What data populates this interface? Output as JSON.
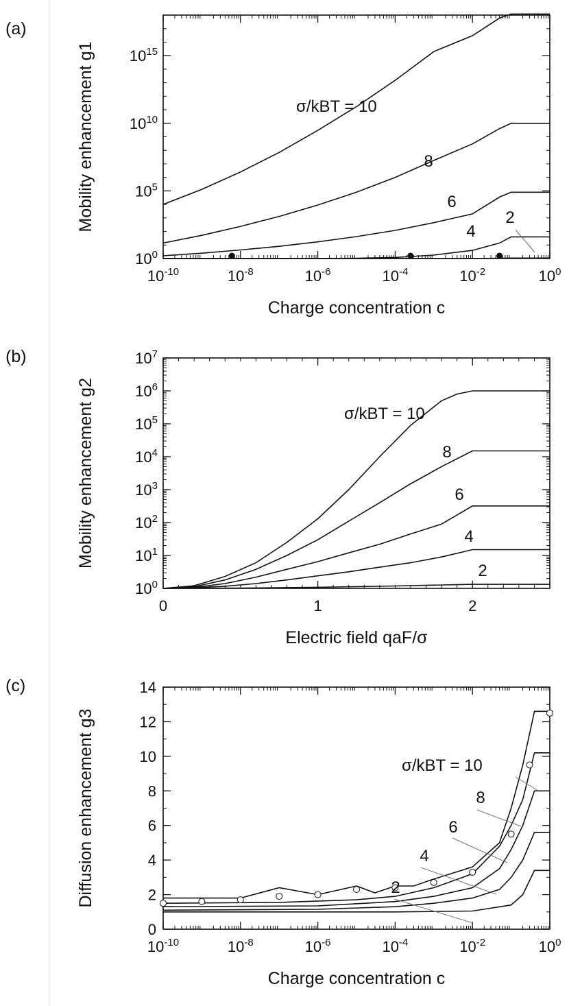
{
  "chart_data": [
    {
      "panel": "(a)",
      "type": "line",
      "xlabel": "Charge concentration c",
      "ylabel": "Mobility enhancement g1",
      "x_scale": "log",
      "y_scale": "log",
      "xlim": [
        1e-10,
        1
      ],
      "ylim": [
        1,
        1e+18
      ],
      "x_ticks": [
        1e-10,
        1e-08,
        1e-06,
        0.0001,
        0.01,
        1
      ],
      "x_tick_labels": [
        [
          "10",
          "-10"
        ],
        [
          "10",
          "-8"
        ],
        [
          "10",
          "-6"
        ],
        [
          "10",
          "-4"
        ],
        [
          "10",
          "-2"
        ],
        [
          "10",
          "0"
        ]
      ],
      "y_ticks": [
        1,
        100000.0,
        10000000000.0,
        1000000000000000.0
      ],
      "y_tick_labels": [
        [
          "10",
          "0"
        ],
        [
          "10",
          "5"
        ],
        [
          "10",
          "10"
        ],
        [
          "10",
          "15"
        ]
      ],
      "curve_labels": {
        "sigma10": "σ/kBT = 10",
        "s8": "8",
        "s6": "6",
        "s4": "4",
        "s2": "2"
      },
      "series": [
        {
          "name": "10",
          "x": [
            1e-10,
            1e-09,
            1e-08,
            1e-07,
            1e-06,
            1e-05,
            0.0001,
            0.001,
            0.01,
            0.05,
            0.1,
            1
          ],
          "y": [
            10000.0,
            130000.0,
            2500000.0,
            70000000.0,
            3000000000.0,
            170000000000.0,
            15000000000000.0,
            2000000000000000.0,
            3e+16,
            6e+17,
            1.2e+18,
            1.2e+18
          ]
        },
        {
          "name": "8",
          "x": [
            1e-10,
            1e-09,
            1e-08,
            1e-07,
            1e-06,
            1e-05,
            0.0001,
            0.001,
            0.01,
            0.05,
            0.1,
            1
          ],
          "y": [
            14,
            52,
            240,
            1300,
            9000,
            80000.0,
            1000000.0,
            18000000.0,
            300000000.0,
            4000000000.0,
            10000000000.0,
            10000000000.0
          ]
        },
        {
          "name": "6",
          "x": [
            1e-10,
            1e-09,
            1e-08,
            1e-07,
            1e-06,
            1e-05,
            0.0001,
            0.001,
            0.01,
            0.05,
            0.1,
            1
          ],
          "y": [
            1.6,
            2.5,
            4.3,
            8,
            17,
            42,
            120,
            450,
            2000,
            35000.0,
            80000.0,
            80000.0
          ]
        },
        {
          "name": "4",
          "x": [
            1e-10,
            1e-06,
            1e-05,
            0.0001,
            0.001,
            0.01,
            0.05,
            0.1,
            1
          ],
          "y": [
            1,
            1.02,
            1.05,
            1.2,
            1.8,
            4,
            14,
            40,
            40
          ]
        },
        {
          "name": "2",
          "x": [
            1e-10,
            0.0001,
            0.01,
            0.05,
            0.1,
            1
          ],
          "y": [
            1,
            1,
            1.01,
            1.05,
            1.08,
            1.08
          ]
        }
      ],
      "points": {
        "x": [
          6e-09,
          0.00025,
          0.05
        ],
        "y": [
          1.6,
          1.6,
          1.6
        ]
      }
    },
    {
      "panel": "(b)",
      "type": "line",
      "xlabel": "Electric field qaF/σ",
      "ylabel": "Mobility enhancement g2",
      "x_scale": "linear",
      "y_scale": "log",
      "xlim": [
        0,
        2.5
      ],
      "ylim": [
        1,
        10000000.0
      ],
      "x_ticks": [
        0,
        1,
        2
      ],
      "x_tick_labels": [
        "0",
        "1",
        "2"
      ],
      "y_ticks": [
        1,
        10,
        100,
        1000,
        10000.0,
        100000.0,
        1000000.0,
        10000000.0
      ],
      "y_tick_labels": [
        [
          "10",
          "0"
        ],
        [
          "10",
          "1"
        ],
        [
          "10",
          "2"
        ],
        [
          "10",
          "3"
        ],
        [
          "10",
          "4"
        ],
        [
          "10",
          "5"
        ],
        [
          "10",
          "6"
        ],
        [
          "10",
          "7"
        ]
      ],
      "curve_labels": {
        "sigma10": "σ/kBT = 10",
        "s8": "8",
        "s6": "6",
        "s4": "4",
        "s2": "2"
      },
      "series": [
        {
          "name": "10",
          "x": [
            0,
            0.2,
            0.4,
            0.6,
            0.8,
            1,
            1.2,
            1.4,
            1.6,
            1.8,
            1.9,
            2,
            2.5
          ],
          "y": [
            1,
            1.2,
            2.3,
            6,
            25,
            130,
            1000,
            10000.0,
            90000.0,
            500000.0,
            800000.0,
            1000000.0,
            1000000.0
          ]
        },
        {
          "name": "8",
          "x": [
            0,
            0.2,
            0.4,
            0.6,
            0.8,
            1,
            1.2,
            1.4,
            1.6,
            1.8,
            2,
            2.5
          ],
          "y": [
            1,
            1.12,
            1.8,
            3.8,
            10,
            30,
            110,
            400,
            1500,
            5000,
            15000.0,
            15000.0
          ]
        },
        {
          "name": "6",
          "x": [
            0,
            0.2,
            0.4,
            0.6,
            0.8,
            1,
            1.2,
            1.4,
            1.6,
            1.8,
            2,
            2.5
          ],
          "y": [
            1,
            1.07,
            1.4,
            2.2,
            3.8,
            6.5,
            12,
            22,
            45,
            90,
            320,
            320
          ]
        },
        {
          "name": "4",
          "x": [
            0,
            0.2,
            0.4,
            0.6,
            0.8,
            1,
            1.2,
            1.4,
            1.6,
            1.8,
            2,
            2.5
          ],
          "y": [
            1,
            1.04,
            1.16,
            1.4,
            1.8,
            2.4,
            3.2,
            4.4,
            6,
            9,
            15,
            15
          ]
        },
        {
          "name": "2",
          "x": [
            0,
            0.5,
            1,
            1.5,
            2,
            2.5
          ],
          "y": [
            1,
            1.02,
            1.08,
            1.18,
            1.33,
            1.33
          ]
        }
      ]
    },
    {
      "panel": "(c)",
      "type": "line",
      "xlabel": "Charge concentration c",
      "ylabel": "Diffusion enhancement g3",
      "x_scale": "log",
      "y_scale": "linear",
      "xlim": [
        1e-10,
        1
      ],
      "ylim": [
        0,
        14
      ],
      "x_ticks": [
        1e-10,
        1e-08,
        1e-06,
        0.0001,
        0.01,
        1
      ],
      "x_tick_labels": [
        [
          "10",
          "-10"
        ],
        [
          "10",
          "-8"
        ],
        [
          "10",
          "-6"
        ],
        [
          "10",
          "-4"
        ],
        [
          "10",
          "-2"
        ],
        [
          "10",
          "0"
        ]
      ],
      "y_ticks": [
        0,
        2,
        4,
        6,
        8,
        10,
        12,
        14
      ],
      "y_tick_labels": [
        "0",
        "2",
        "4",
        "6",
        "8",
        "10",
        "12",
        "14"
      ],
      "curve_labels": {
        "sigma10": "σ/kBT = 10",
        "s8": "8",
        "s6": "6",
        "s4": "4",
        "s2": "2"
      },
      "series": [
        {
          "name": "10",
          "x": [
            1e-10,
            1e-09,
            1e-08,
            1e-07,
            1e-06,
            1e-05,
            3e-05,
            0.0001,
            0.0003,
            0.001,
            0.01,
            0.05,
            0.1,
            0.2,
            0.4,
            1
          ],
          "y": [
            1.8,
            1.8,
            1.8,
            2.4,
            2.0,
            2.5,
            2.1,
            2.5,
            2.5,
            2.9,
            3.6,
            5.0,
            7.0,
            9.5,
            12.6,
            12.6
          ]
        },
        {
          "name": "8",
          "x": [
            1e-10,
            1e-07,
            1e-05,
            0.0001,
            0.001,
            0.01,
            0.05,
            0.1,
            0.2,
            0.4,
            1
          ],
          "y": [
            1.5,
            1.55,
            1.7,
            1.9,
            2.4,
            3.2,
            4.8,
            6.0,
            7.5,
            10.2,
            10.2
          ]
        },
        {
          "name": "6",
          "x": [
            1e-10,
            1e-06,
            0.0001,
            0.001,
            0.01,
            0.05,
            0.1,
            0.2,
            0.4,
            1
          ],
          "y": [
            1.3,
            1.35,
            1.6,
            1.9,
            2.4,
            3.5,
            4.6,
            6.0,
            8.0,
            8.0
          ]
        },
        {
          "name": "4",
          "x": [
            1e-10,
            1e-06,
            0.0001,
            0.001,
            0.01,
            0.05,
            0.1,
            0.2,
            0.4,
            1
          ],
          "y": [
            1.1,
            1.15,
            1.3,
            1.5,
            1.8,
            2.3,
            3.0,
            4.0,
            5.6,
            5.6
          ]
        },
        {
          "name": "2",
          "x": [
            1e-10,
            0.0001,
            0.01,
            0.1,
            0.2,
            0.4,
            1
          ],
          "y": [
            1.0,
            1.0,
            1.05,
            1.4,
            2.0,
            3.4,
            3.4
          ]
        }
      ],
      "points": {
        "x": [
          1e-10,
          1e-09,
          1e-08,
          1e-07,
          1e-06,
          1e-05,
          0.0001,
          0.001,
          0.01,
          0.1,
          0.3,
          1
        ],
        "y": [
          1.5,
          1.6,
          1.7,
          1.9,
          2.0,
          2.3,
          2.4,
          2.7,
          3.3,
          5.5,
          9.5,
          12.5
        ]
      }
    }
  ],
  "panel_labels": {
    "a": "(a)",
    "b": "(b)",
    "c": "(c)"
  }
}
